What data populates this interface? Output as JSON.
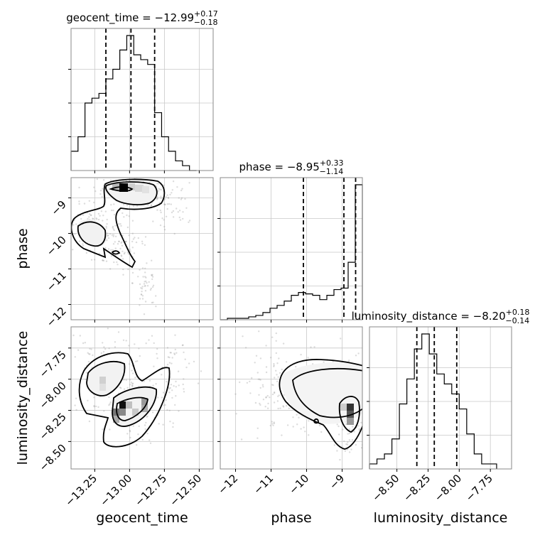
{
  "chart_data": {
    "type": "corner",
    "parameters": [
      "geocent_time",
      "phase",
      "luminosity_distance"
    ],
    "axis_labels": {
      "geocent_time": "geocent_time",
      "phase": "phase",
      "luminosity_distance": "luminosity_distance"
    },
    "ranges": {
      "geocent_time": [
        -13.42,
        -12.4
      ],
      "phase": [
        -12.43,
        -8.43
      ],
      "luminosity_distance": [
        -8.72,
        -7.58
      ]
    },
    "ticks": {
      "geocent_time": [
        "−13.25",
        "−13.00",
        "−12.75",
        "−12.50"
      ],
      "phase": [
        "−12",
        "−11",
        "−10",
        "−9"
      ],
      "luminosity_distance": [
        "−8.50",
        "−8.25",
        "−8.00",
        "−7.75"
      ]
    },
    "tick_values": {
      "geocent_time": [
        -13.25,
        -13.0,
        -12.75,
        -12.5
      ],
      "phase": [
        -12,
        -11,
        -10,
        -9
      ],
      "luminosity_distance": [
        -8.5,
        -8.25,
        -8.0,
        -7.75
      ]
    },
    "titles": [
      {
        "name": "geocent_time",
        "prefix": "geocent_time = −12.99",
        "sup": "+0.17",
        "sub": "−0.18"
      },
      {
        "name": "phase",
        "prefix": "phase = −8.95",
        "sup": "+0.33",
        "sub": "−1.14"
      },
      {
        "name": "luminosity_distance",
        "prefix": "luminosity_distance = −8.20",
        "sup": "+0.18",
        "sub": "−0.14"
      }
    ],
    "quantiles": {
      "geocent_time": [
        -13.17,
        -12.99,
        -12.82
      ],
      "phase": [
        -10.09,
        -8.95,
        -8.62
      ],
      "luminosity_distance": [
        -8.34,
        -8.2,
        -8.02
      ]
    },
    "histograms": {
      "geocent_time": {
        "edges": [
          -13.42,
          -13.37,
          -13.32,
          -13.27,
          -13.22,
          -13.17,
          -13.12,
          -13.07,
          -13.02,
          -12.97,
          -12.92,
          -12.87,
          -12.82,
          -12.77,
          -12.72,
          -12.67,
          -12.62,
          -12.57,
          -12.52
        ],
        "counts": [
          4,
          7,
          14,
          15,
          16,
          19,
          21,
          25,
          28,
          24,
          23,
          22,
          12,
          7,
          4,
          2,
          1,
          0
        ]
      },
      "phase": {
        "edges": [
          -12.43,
          -12.23,
          -12.03,
          -11.83,
          -11.63,
          -11.43,
          -11.23,
          -11.03,
          -10.83,
          -10.63,
          -10.43,
          -10.23,
          -10.03,
          -9.83,
          -9.63,
          -9.43,
          -9.23,
          -9.03,
          -8.83,
          -8.63,
          -8.43
        ],
        "counts": [
          0,
          1,
          1,
          1,
          2,
          3,
          5,
          8,
          10,
          13,
          17,
          19,
          18,
          17,
          14,
          17,
          21,
          22,
          40,
          94
        ]
      },
      "luminosity_distance": {
        "edges": [
          -8.72,
          -8.66,
          -8.6,
          -8.54,
          -8.48,
          -8.42,
          -8.36,
          -8.3,
          -8.24,
          -8.18,
          -8.12,
          -8.06,
          -8.0,
          -7.94,
          -7.88,
          -7.82,
          -7.76,
          -7.7
        ],
        "counts": [
          1,
          2,
          3,
          6,
          13,
          18,
          24,
          27,
          23,
          19,
          17,
          15,
          12,
          7,
          3,
          1,
          1
        ]
      }
    }
  }
}
